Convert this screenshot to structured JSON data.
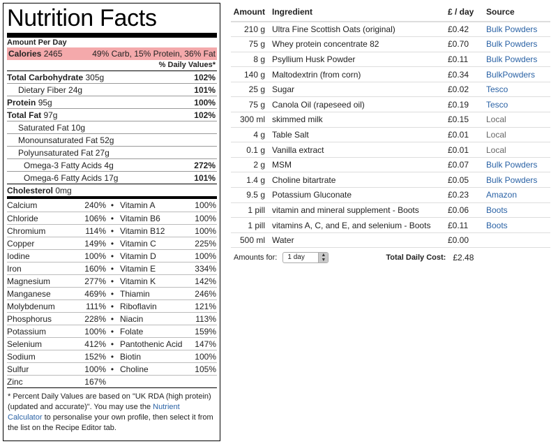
{
  "label": {
    "title": "Nutrition Facts",
    "amount_per": "Amount Per Day",
    "calories_label": "Calories",
    "calories_value": "2465",
    "calories_breakdown": "49% Carb, 15% Protein, 36% Fat",
    "dv_header": "% Daily Values*",
    "macros": [
      {
        "name": "Total Carbohydrate",
        "amount": "305g",
        "pct": "102%",
        "bold": true
      },
      {
        "name": "Dietary Fiber",
        "amount": "24g",
        "pct": "101%",
        "bold": false
      },
      {
        "name": "Protein",
        "amount": "95g",
        "pct": "100%",
        "bold": true
      },
      {
        "name": "Total Fat",
        "amount": "97g",
        "pct": "102%",
        "bold": true
      },
      {
        "name": "Saturated Fat",
        "amount": "10g",
        "pct": "",
        "bold": false
      },
      {
        "name": "Monounsaturated Fat",
        "amount": "52g",
        "pct": "",
        "bold": false
      },
      {
        "name": "Polyunsaturated Fat",
        "amount": "27g",
        "pct": "",
        "bold": false
      },
      {
        "name": "Omega-3 Fatty Acids",
        "amount": "4g",
        "pct": "272%",
        "bold": false
      },
      {
        "name": "Omega-6 Fatty Acids",
        "amount": "17g",
        "pct": "101%",
        "bold": false
      },
      {
        "name": "Cholesterol",
        "amount": "0mg",
        "pct": "",
        "bold": true
      }
    ],
    "micros": [
      {
        "n1": "Calcium",
        "v1": "240%",
        "n2": "Vitamin A",
        "v2": "100%"
      },
      {
        "n1": "Chloride",
        "v1": "106%",
        "n2": "Vitamin B6",
        "v2": "100%"
      },
      {
        "n1": "Chromium",
        "v1": "114%",
        "n2": "Vitamin B12",
        "v2": "100%"
      },
      {
        "n1": "Copper",
        "v1": "149%",
        "n2": "Vitamin C",
        "v2": "225%"
      },
      {
        "n1": "Iodine",
        "v1": "100%",
        "n2": "Vitamin D",
        "v2": "100%"
      },
      {
        "n1": "Iron",
        "v1": "160%",
        "n2": "Vitamin E",
        "v2": "334%"
      },
      {
        "n1": "Magnesium",
        "v1": "277%",
        "n2": "Vitamin K",
        "v2": "142%"
      },
      {
        "n1": "Manganese",
        "v1": "469%",
        "n2": "Thiamin",
        "v2": "246%"
      },
      {
        "n1": "Molybdenum",
        "v1": "111%",
        "n2": "Riboflavin",
        "v2": "121%"
      },
      {
        "n1": "Phosphorus",
        "v1": "228%",
        "n2": "Niacin",
        "v2": "113%"
      },
      {
        "n1": "Potassium",
        "v1": "100%",
        "n2": "Folate",
        "v2": "159%"
      },
      {
        "n1": "Selenium",
        "v1": "412%",
        "n2": "Pantothenic Acid",
        "v2": "147%"
      },
      {
        "n1": "Sodium",
        "v1": "152%",
        "n2": "Biotin",
        "v2": "100%"
      },
      {
        "n1": "Sulfur",
        "v1": "100%",
        "n2": "Choline",
        "v2": "105%"
      },
      {
        "n1": "Zinc",
        "v1": "167%",
        "n2": "",
        "v2": ""
      }
    ],
    "footnote_pre": "* Percent Daily Values are based on \"UK RDA (high protein) (updated and accurate)\". You may use the ",
    "footnote_link": "Nutrient Calculator",
    "footnote_post": " to personalise your own profile, then select it from the list on the Recipe Editor tab."
  },
  "table": {
    "headers": {
      "amount": "Amount",
      "ingredient": "Ingredient",
      "price": "£ / day",
      "source": "Source"
    },
    "rows": [
      {
        "amount": "210 g",
        "ingredient": "Ultra Fine Scottish Oats (original)",
        "price": "£0.42",
        "source": "Bulk Powders",
        "link": true
      },
      {
        "amount": "75 g",
        "ingredient": "Whey protein concentrate 82",
        "price": "£0.70",
        "source": "Bulk Powders",
        "link": true
      },
      {
        "amount": "8 g",
        "ingredient": "Psyllium Husk Powder",
        "price": "£0.11",
        "source": "Bulk Powders",
        "link": true
      },
      {
        "amount": "140 g",
        "ingredient": "Maltodextrin (from corn)",
        "price": "£0.34",
        "source": "BulkPowders",
        "link": true
      },
      {
        "amount": "25 g",
        "ingredient": "Sugar",
        "price": "£0.02",
        "source": "Tesco",
        "link": true
      },
      {
        "amount": "75 g",
        "ingredient": "Canola Oil (rapeseed oil)",
        "price": "£0.19",
        "source": "Tesco",
        "link": true
      },
      {
        "amount": "300 ml",
        "ingredient": "skimmed milk",
        "price": "£0.15",
        "source": "Local",
        "link": false
      },
      {
        "amount": "4 g",
        "ingredient": "Table Salt",
        "price": "£0.01",
        "source": "Local",
        "link": false
      },
      {
        "amount": "0.1 g",
        "ingredient": "Vanilla extract",
        "price": "£0.01",
        "source": "Local",
        "link": false
      },
      {
        "amount": "2 g",
        "ingredient": "MSM",
        "price": "£0.07",
        "source": "Bulk Powders",
        "link": true
      },
      {
        "amount": "1.4 g",
        "ingredient": "Choline bitartrate",
        "price": "£0.05",
        "source": "Bulk Powders",
        "link": true
      },
      {
        "amount": "9.5 g",
        "ingredient": "Potassium Gluconate",
        "price": "£0.23",
        "source": "Amazon",
        "link": true
      },
      {
        "amount": "1 pill",
        "ingredient": "vitamin and mineral supplement - Boots",
        "price": "£0.06",
        "source": "Boots",
        "link": true
      },
      {
        "amount": "1 pill",
        "ingredient": "vitamins A, C, and E, and selenium - Boots",
        "price": "£0.11",
        "source": "Boots",
        "link": true
      },
      {
        "amount": "500 ml",
        "ingredient": "Water",
        "price": "£0.00",
        "source": "",
        "link": false
      }
    ],
    "amounts_for_label": "Amounts for:",
    "amounts_for_value": "1 day",
    "total_label": "Total Daily Cost:",
    "total_value": "£2.48"
  },
  "colors": {
    "calories_bg": "#f4a9ab",
    "link": "#2a62a5"
  }
}
